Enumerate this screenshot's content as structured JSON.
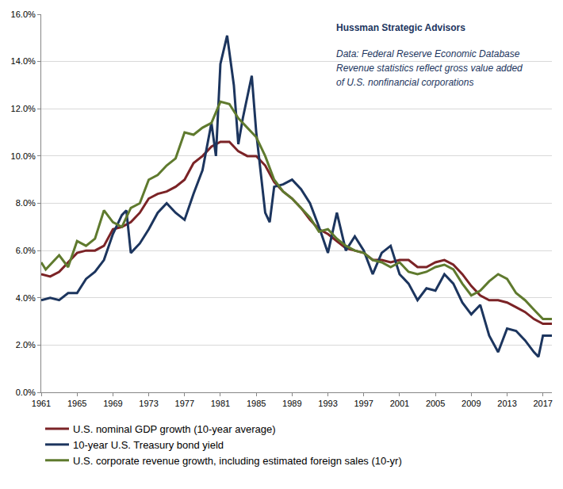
{
  "chart_data": {
    "type": "line",
    "annotations": [
      "Hussman Strategic Advisors",
      "Data: Federal Reserve Economic Database",
      "Revenue statistics reflect gross value added",
      "of U.S. nonfinancial corporations"
    ],
    "xlim": [
      1961,
      2018
    ],
    "xticks": [
      1961,
      1965,
      1969,
      1973,
      1977,
      1981,
      1985,
      1989,
      1993,
      1997,
      2001,
      2005,
      2009,
      2013,
      2017
    ],
    "ylim": [
      0,
      16
    ],
    "yticks": [
      {
        "value": 0,
        "label": "0.0%"
      },
      {
        "value": 2,
        "label": "2.0%"
      },
      {
        "value": 4,
        "label": "4.0%"
      },
      {
        "value": 6,
        "label": "6.0%"
      },
      {
        "value": 8,
        "label": "8.0%"
      },
      {
        "value": 10,
        "label": "10.0%"
      },
      {
        "value": 12,
        "label": "12.0%"
      },
      {
        "value": 14,
        "label": "14.0%"
      },
      {
        "value": 16,
        "label": "16.0%"
      }
    ],
    "grid": true,
    "legend": "bottom",
    "series": [
      {
        "name": "U.S. nominal GDP growth (10-year average)",
        "color": "#7b2326",
        "x": [
          1961,
          1962,
          1963,
          1964,
          1965,
          1966,
          1967,
          1968,
          1969,
          1970,
          1971,
          1972,
          1973,
          1974,
          1975,
          1976,
          1977,
          1978,
          1979,
          1980,
          1981,
          1982,
          1983,
          1984,
          1985,
          1986,
          1987,
          1988,
          1989,
          1990,
          1991,
          1992,
          1993,
          1994,
          1995,
          1996,
          1997,
          1998,
          1999,
          2000,
          2001,
          2002,
          2003,
          2004,
          2005,
          2006,
          2007,
          2008,
          2009,
          2010,
          2011,
          2012,
          2013,
          2014,
          2015,
          2016,
          2017,
          2018
        ],
        "values": [
          5.0,
          4.9,
          5.1,
          5.5,
          5.9,
          6.0,
          6.0,
          6.2,
          6.9,
          7.0,
          7.2,
          7.6,
          8.2,
          8.4,
          8.5,
          8.7,
          9.0,
          9.7,
          10.0,
          10.4,
          10.6,
          10.6,
          10.2,
          10.0,
          10.0,
          9.6,
          8.9,
          8.5,
          8.2,
          7.8,
          7.3,
          6.9,
          6.7,
          6.4,
          6.1,
          6.0,
          5.9,
          5.6,
          5.6,
          5.5,
          5.6,
          5.6,
          5.3,
          5.3,
          5.5,
          5.6,
          5.4,
          5.0,
          4.5,
          4.1,
          3.9,
          3.9,
          3.8,
          3.6,
          3.4,
          3.1,
          2.9,
          2.9
        ]
      },
      {
        "name": "10-year U.S. Treasury bond yield",
        "color": "#1c355e",
        "x": [
          1961,
          1962,
          1963,
          1964,
          1965,
          1966,
          1967,
          1968,
          1969,
          1970,
          1970.5,
          1971,
          1972,
          1973,
          1974,
          1975,
          1976,
          1977,
          1978,
          1979,
          1980,
          1980.5,
          1981,
          1981.75,
          1982.5,
          1983,
          1983.5,
          1984.5,
          1985,
          1986,
          1986.5,
          1987,
          1988,
          1989,
          1990,
          1991,
          1992,
          1993,
          1994,
          1995,
          1996,
          1997,
          1998,
          1999,
          2000,
          2001,
          2002,
          2003,
          2004,
          2005,
          2006,
          2007,
          2008,
          2009,
          2010,
          2011,
          2012,
          2013,
          2014,
          2015,
          2016,
          2016.5,
          2017,
          2018
        ],
        "values": [
          3.9,
          4.0,
          3.9,
          4.2,
          4.2,
          4.8,
          5.1,
          5.6,
          6.7,
          7.5,
          7.7,
          5.9,
          6.3,
          6.9,
          7.6,
          8.0,
          7.6,
          7.3,
          8.4,
          9.4,
          11.4,
          10.0,
          13.9,
          15.1,
          13.0,
          10.5,
          11.6,
          13.4,
          11.0,
          7.6,
          7.2,
          8.7,
          8.8,
          9.0,
          8.6,
          8.0,
          7.0,
          5.9,
          7.6,
          6.0,
          6.6,
          6.0,
          5.0,
          5.9,
          6.2,
          5.0,
          4.6,
          3.9,
          4.4,
          4.3,
          5.0,
          4.6,
          3.8,
          3.3,
          3.7,
          2.4,
          1.7,
          2.7,
          2.6,
          2.2,
          1.7,
          1.5,
          2.4,
          2.4
        ]
      },
      {
        "name": "U.S. corporate revenue growth, including estimated foreign sales (10-yr)",
        "color": "#5f7a2e",
        "x": [
          1961,
          1961.5,
          1962,
          1963,
          1964,
          1965,
          1966,
          1967,
          1968,
          1969,
          1970,
          1971,
          1972,
          1973,
          1974,
          1975,
          1976,
          1977,
          1978,
          1979,
          1980,
          1981,
          1982,
          1983,
          1984,
          1985,
          1986,
          1987,
          1988,
          1989,
          1990,
          1991,
          1992,
          1993,
          1994,
          1995,
          1996,
          1997,
          1998,
          1999,
          2000,
          2001,
          2002,
          2003,
          2004,
          2005,
          2006,
          2007,
          2008,
          2009,
          2010,
          2011,
          2012,
          2013,
          2014,
          2015,
          2016,
          2017,
          2018
        ],
        "values": [
          5.5,
          5.2,
          5.4,
          5.8,
          5.3,
          6.4,
          6.2,
          6.5,
          7.7,
          7.2,
          7.0,
          7.8,
          8.0,
          9.0,
          9.2,
          9.6,
          9.9,
          11.0,
          10.9,
          11.2,
          11.4,
          12.3,
          12.2,
          11.6,
          11.2,
          10.8,
          10.0,
          9.0,
          8.5,
          8.2,
          7.8,
          7.4,
          6.8,
          6.9,
          6.5,
          6.2,
          6.0,
          5.9,
          5.6,
          5.5,
          5.3,
          5.5,
          5.1,
          5.0,
          5.1,
          5.3,
          5.4,
          5.2,
          4.6,
          4.1,
          4.3,
          4.7,
          5.0,
          4.8,
          4.2,
          3.9,
          3.5,
          3.1,
          3.1
        ]
      }
    ]
  }
}
